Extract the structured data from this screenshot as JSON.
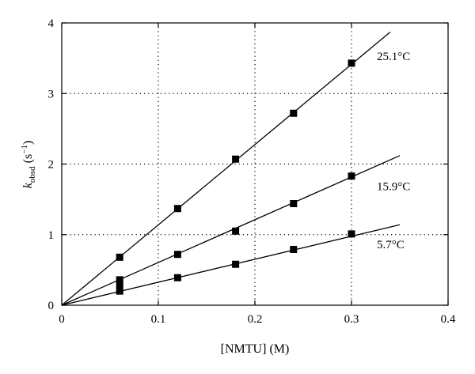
{
  "chart_data": {
    "type": "scatter",
    "xlabel": "[NMTU] (M)",
    "ylabel": {
      "main": "k",
      "sub": "obsd",
      "unit_open": " (s",
      "unit_sup": "−1",
      "unit_close": ")"
    },
    "xlim": [
      0,
      0.4
    ],
    "ylim": [
      0,
      4
    ],
    "x_ticks": [
      0,
      0.1,
      0.2,
      0.3,
      0.4
    ],
    "x_tick_labels": [
      "0",
      "0.1",
      "0.2",
      "0.3",
      "0.4"
    ],
    "y_ticks": [
      0,
      1,
      2,
      3,
      4
    ],
    "y_tick_labels": [
      "0",
      "1",
      "2",
      "3",
      "4"
    ],
    "grid": "dotted",
    "series": [
      {
        "name": "25.1°C",
        "points": [
          [
            0.06,
            0.68
          ],
          [
            0.12,
            1.37
          ],
          [
            0.18,
            2.07
          ],
          [
            0.24,
            2.72
          ],
          [
            0.3,
            3.43
          ]
        ],
        "fit": {
          "x": [
            0,
            0.34
          ],
          "y": [
            0,
            3.87
          ]
        }
      },
      {
        "name": "15.9°C",
        "points": [
          [
            0.06,
            0.36
          ],
          [
            0.12,
            0.72
          ],
          [
            0.18,
            1.05
          ],
          [
            0.24,
            1.44
          ],
          [
            0.3,
            1.83
          ]
        ],
        "fit": {
          "x": [
            0,
            0.35
          ],
          "y": [
            0,
            2.12
          ]
        }
      },
      {
        "name": "5.7°C",
        "points": [
          [
            0.06,
            0.2
          ],
          [
            0.06,
            0.29
          ],
          [
            0.12,
            0.39
          ],
          [
            0.18,
            0.58
          ],
          [
            0.24,
            0.79
          ],
          [
            0.3,
            1.01
          ]
        ],
        "fit": {
          "x": [
            0,
            0.35
          ],
          "y": [
            0,
            1.14
          ]
        }
      }
    ]
  }
}
